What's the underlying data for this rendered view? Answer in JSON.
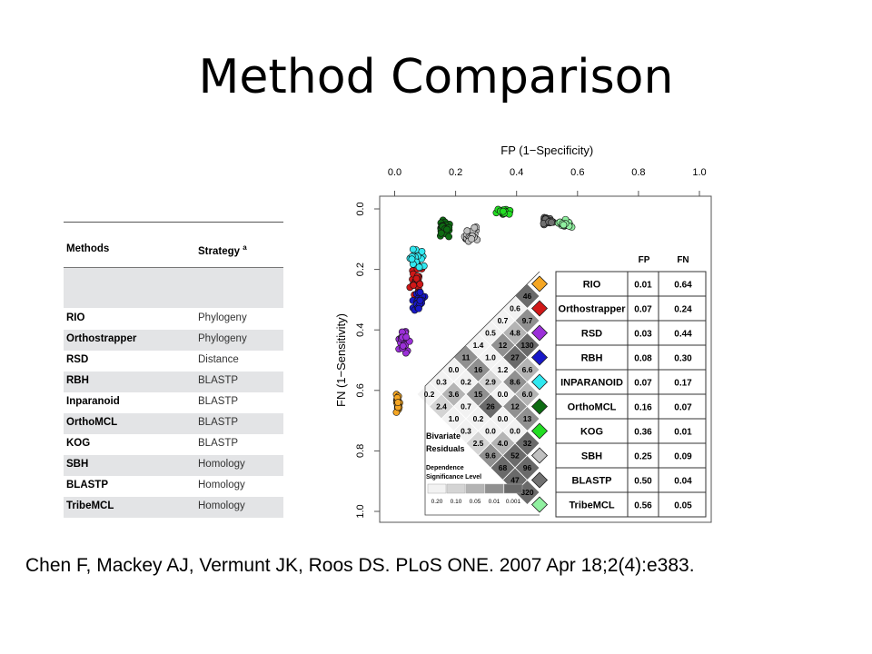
{
  "slide": {
    "title": "Method Comparison",
    "citation": "Chen F, Mackey AJ, Vermunt JK, Roos DS. PLoS ONE. 2007 Apr 18;2(4):e383."
  },
  "table": {
    "headers": {
      "method": "Methods",
      "strategy": "Strategy",
      "strategy_sup": "a"
    },
    "rows": [
      {
        "method": "RIO",
        "strategy": "Phylogeny"
      },
      {
        "method": "Orthostrapper",
        "strategy": "Phylogeny"
      },
      {
        "method": "RSD",
        "strategy": "Distance"
      },
      {
        "method": "RBH",
        "strategy": "BLASTP"
      },
      {
        "method": "Inparanoid",
        "strategy": "BLASTP"
      },
      {
        "method": "OrthoMCL",
        "strategy": "BLASTP"
      },
      {
        "method": "KOG",
        "strategy": "BLASTP"
      },
      {
        "method": "SBH",
        "strategy": "Homology"
      },
      {
        "method": "BLASTP",
        "strategy": "Homology"
      },
      {
        "method": "TribeMCL",
        "strategy": "Homology"
      }
    ]
  },
  "chart_data": {
    "type": "scatter",
    "xlabel": "FP (1−Specificity)",
    "ylabel": "FN (1−Sensitivity)",
    "xlim": [
      0,
      1
    ],
    "ylim": [
      0,
      1
    ],
    "y_inverted": true,
    "x_axis_position": "top",
    "x_ticks": [
      "0.0",
      "0.2",
      "0.4",
      "0.6",
      "0.8",
      "1.0"
    ],
    "y_ticks": [
      "0.0",
      "0.2",
      "0.4",
      "0.6",
      "0.8",
      "1.0"
    ],
    "legend_headers": {
      "fp": "FP",
      "fn": "FN"
    },
    "series": [
      {
        "name": "RIO",
        "color": "#f5a623",
        "fp": "0.01",
        "fn": "0.64",
        "center": [
          0.01,
          0.64
        ],
        "spread": [
          0.008,
          0.025
        ]
      },
      {
        "name": "Orthostrapper",
        "color": "#d01818",
        "fp": "0.07",
        "fn": "0.24",
        "center": [
          0.07,
          0.24
        ],
        "spread": [
          0.018,
          0.035
        ]
      },
      {
        "name": "RSD",
        "color": "#9b30d8",
        "fp": "0.03",
        "fn": "0.44",
        "center": [
          0.03,
          0.44
        ],
        "spread": [
          0.012,
          0.03
        ]
      },
      {
        "name": "RBH",
        "color": "#1818c8",
        "fp": "0.08",
        "fn": "0.30",
        "center": [
          0.08,
          0.3
        ],
        "spread": [
          0.018,
          0.025
        ]
      },
      {
        "name": "INPARANOID",
        "color": "#30e8f0",
        "fp": "0.07",
        "fn": "0.17",
        "center": [
          0.07,
          0.17
        ],
        "spread": [
          0.02,
          0.025
        ]
      },
      {
        "name": "OrthoMCL",
        "color": "#0d6b12",
        "fp": "0.16",
        "fn": "0.07",
        "center": [
          0.16,
          0.07
        ],
        "spread": [
          0.015,
          0.02
        ]
      },
      {
        "name": "KOG",
        "color": "#22dd22",
        "fp": "0.36",
        "fn": "0.01",
        "center": [
          0.36,
          0.01
        ],
        "spread": [
          0.02,
          0.008
        ]
      },
      {
        "name": "SBH",
        "color": "#c0c0c0",
        "fp": "0.25",
        "fn": "0.09",
        "center": [
          0.25,
          0.09
        ],
        "spread": [
          0.02,
          0.02
        ]
      },
      {
        "name": "BLASTP",
        "color": "#707070",
        "fp": "0.50",
        "fn": "0.04",
        "center": [
          0.5,
          0.04
        ],
        "spread": [
          0.015,
          0.012
        ]
      },
      {
        "name": "TribeMCL",
        "color": "#90f0a0",
        "fp": "0.56",
        "fn": "0.05",
        "center": [
          0.56,
          0.05
        ],
        "spread": [
          0.015,
          0.012
        ]
      }
    ],
    "residual_matrix": [
      [
        "46",
        "0.6",
        "0.7",
        "0.5",
        "1.4",
        "11",
        "0.0",
        "0.3",
        "0.2"
      ],
      [
        "9.7",
        "4.8",
        "12",
        "1.0",
        "16",
        "0.2",
        "3.6",
        "2.4"
      ],
      [
        "130",
        "27",
        "1.2",
        "2.9",
        "15",
        "0.7",
        "1.0"
      ],
      [
        "6.6",
        "8.6",
        "0.0",
        "26",
        "0.2",
        "0.3"
      ],
      [
        "6.0",
        "12",
        "0.0",
        "0.0",
        "2.5"
      ],
      [
        "13",
        "0.0",
        "4.0",
        "9.6"
      ],
      [
        "32",
        "52",
        "68"
      ],
      [
        "96",
        "47"
      ],
      [
        "320"
      ]
    ],
    "residual_legend": {
      "title_line1": "Bivariate",
      "title_line2": "Residuals",
      "dependence_line1": "Dependence",
      "dependence_line2": "Significance Level",
      "levels": [
        "0.20",
        "0.10",
        "0.05",
        "0.01",
        "0.001"
      ],
      "level_colors": [
        "#f2f2f2",
        "#d4d4d4",
        "#b4b4b4",
        "#909090",
        "#6a6a6a"
      ]
    }
  }
}
